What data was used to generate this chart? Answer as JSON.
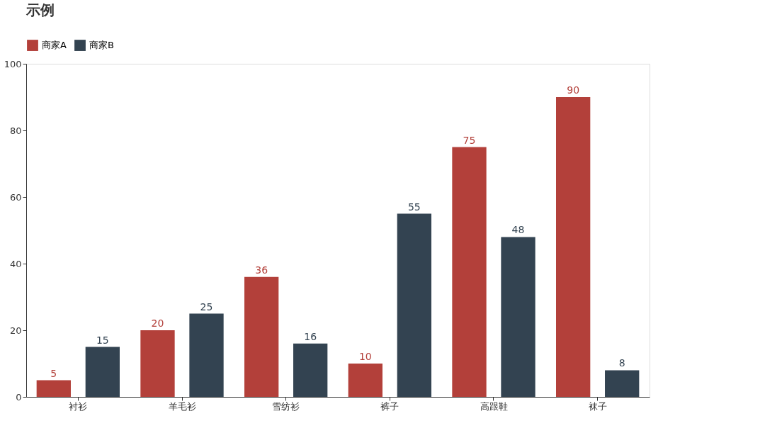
{
  "chart_data": {
    "type": "bar",
    "title": "示例",
    "categories": [
      "衬衫",
      "羊毛衫",
      "雪纺衫",
      "裤子",
      "高跟鞋",
      "袜子"
    ],
    "series": [
      {
        "name": "商家A",
        "color": "#b3403a",
        "values": [
          5,
          20,
          36,
          10,
          75,
          90
        ]
      },
      {
        "name": "商家B",
        "color": "#334351",
        "values": [
          15,
          25,
          16,
          55,
          48,
          8
        ]
      }
    ],
    "ylim": [
      0,
      100
    ],
    "yticks": [
      0,
      20,
      40,
      60,
      80,
      100
    ],
    "grid": false,
    "legend": "top",
    "data_labels": true
  }
}
